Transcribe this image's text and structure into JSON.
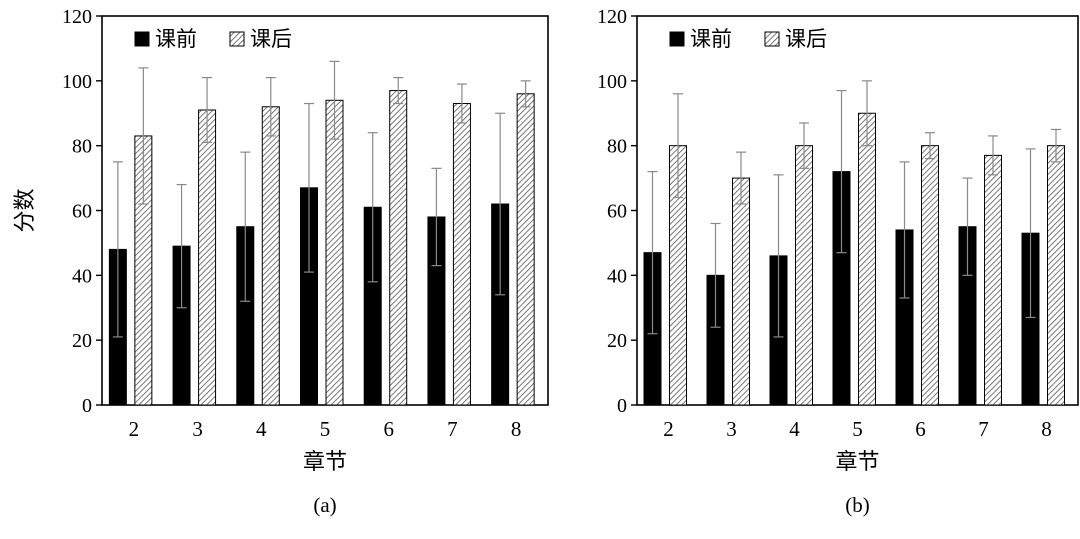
{
  "colors": {
    "before_fill": "#000000",
    "after_hatch": "#555555",
    "errorbar": "#8a8a8a",
    "axis": "#000000"
  },
  "chart_data": [
    {
      "type": "bar",
      "panel_label": "(a)",
      "ylabel": "分数",
      "xlabel": "章节",
      "ylim": [
        0,
        120
      ],
      "yticks": [
        0,
        20,
        40,
        60,
        80,
        100,
        120
      ],
      "categories": [
        "2",
        "3",
        "4",
        "5",
        "6",
        "7",
        "8"
      ],
      "legend_position": "top-left",
      "grid": false,
      "series": [
        {
          "name": "课前",
          "pattern": "solid",
          "values": [
            48,
            49,
            55,
            67,
            61,
            58,
            62
          ],
          "error": [
            27,
            19,
            23,
            26,
            23,
            15,
            28
          ]
        },
        {
          "name": "课后",
          "pattern": "hatched",
          "values": [
            83,
            91,
            92,
            94,
            97,
            93,
            96
          ],
          "error": [
            21,
            10,
            9,
            12,
            4,
            6,
            4
          ]
        }
      ]
    },
    {
      "type": "bar",
      "panel_label": "(b)",
      "ylabel": "",
      "xlabel": "章节",
      "ylim": [
        0,
        120
      ],
      "yticks": [
        0,
        20,
        40,
        60,
        80,
        100,
        120
      ],
      "categories": [
        "2",
        "3",
        "4",
        "5",
        "6",
        "7",
        "8"
      ],
      "legend_position": "top-left",
      "grid": false,
      "series": [
        {
          "name": "课前",
          "pattern": "solid",
          "values": [
            47,
            40,
            46,
            72,
            54,
            55,
            53
          ],
          "error": [
            25,
            16,
            25,
            25,
            21,
            15,
            26
          ]
        },
        {
          "name": "课后",
          "pattern": "hatched",
          "values": [
            80,
            70,
            80,
            90,
            80,
            77,
            80
          ],
          "error": [
            16,
            8,
            7,
            10,
            4,
            6,
            5
          ]
        }
      ]
    }
  ]
}
